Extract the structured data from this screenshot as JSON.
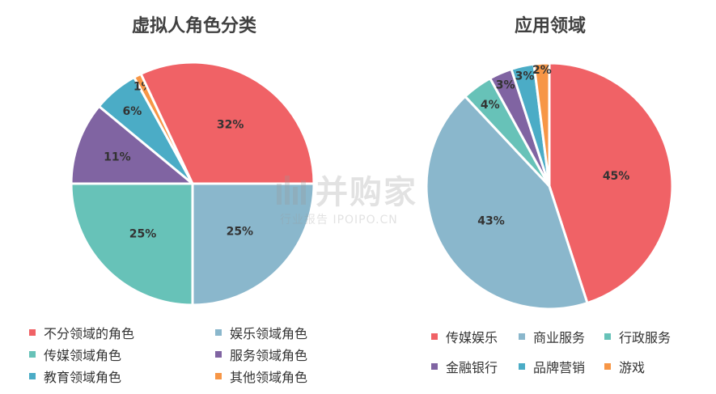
{
  "chart_data": [
    {
      "type": "pie",
      "title": "虚拟人角色分类",
      "labels": [
        "娱乐领域角色",
        "传媒领域角色",
        "服务领域角色",
        "教育领域角色",
        "其他领域角色",
        "不分领域的角色"
      ],
      "values": [
        25,
        25,
        11,
        6,
        1,
        32
      ],
      "data_labels": [
        "25%",
        "25%",
        "11%",
        "6%",
        "1%",
        "32%"
      ],
      "colors": [
        "#8AB7CC",
        "#67C2B8",
        "#8064A2",
        "#4BACC6",
        "#F79646",
        "#F06266"
      ],
      "legend": {
        "position": "bottom",
        "items": [
          "不分领域的角色",
          "娱乐领域角色",
          "传媒领域角色",
          "服务领域角色",
          "教育领域角色",
          "其他领域角色"
        ],
        "colors": [
          "#F06266",
          "#8AB7CC",
          "#67C2B8",
          "#8064A2",
          "#4BACC6",
          "#F79646"
        ]
      }
    },
    {
      "type": "pie",
      "title": "应用领域",
      "labels": [
        "传媒娱乐",
        "商业服务",
        "行政服务",
        "金融银行",
        "品牌营销",
        "游戏"
      ],
      "values": [
        45,
        43,
        4,
        3,
        3,
        2
      ],
      "data_labels": [
        "45%",
        "43%",
        "4%",
        "3%",
        "3%",
        "2%"
      ],
      "colors": [
        "#F06266",
        "#8AB7CC",
        "#67C2B8",
        "#8064A2",
        "#4BACC6",
        "#F79646"
      ],
      "legend": {
        "position": "bottom",
        "items": [
          "传媒娱乐",
          "商业服务",
          "行政服务",
          "金融银行",
          "品牌营销",
          "游戏"
        ],
        "colors": [
          "#F06266",
          "#8AB7CC",
          "#67C2B8",
          "#8064A2",
          "#4BACC6",
          "#F79646"
        ]
      }
    }
  ],
  "watermark": {
    "main": "并购家",
    "sub": "行业报告 IPOIPO.CN"
  }
}
